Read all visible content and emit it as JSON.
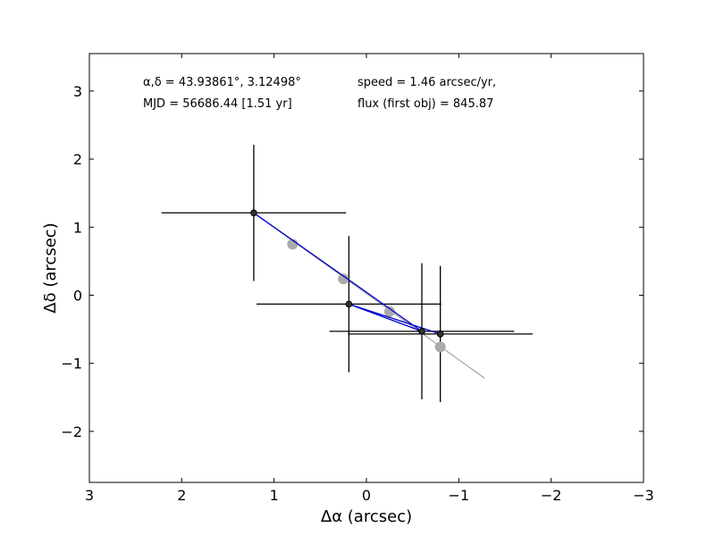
{
  "chart_data": {
    "type": "scatter",
    "xlabel": "Δα (arcsec)",
    "ylabel": "Δδ (arcsec)",
    "xlim": [
      3,
      -3
    ],
    "ylim": [
      -2.75,
      3.55
    ],
    "x_ticks": [
      3,
      2,
      1,
      0,
      -1,
      -2,
      -3
    ],
    "x_tick_labels": [
      "3",
      "2",
      "1",
      "0",
      "−1",
      "−2",
      "−3"
    ],
    "y_ticks": [
      3,
      2,
      1,
      0,
      -1,
      -2
    ],
    "y_tick_labels": [
      "3",
      "2",
      "1",
      "0",
      "−1",
      "−2"
    ],
    "grid": false,
    "annotations": {
      "coords": "α,δ = 43.93861°, 3.12498°",
      "mjd": "MJD = 56686.44 [1.51 yr]",
      "speed": "speed = 1.46 arcsec/yr,",
      "flux": "flux (first obj) = 845.87"
    },
    "observed": {
      "color": "#000000",
      "path_color": "#0000cc",
      "points": [
        {
          "x": 1.22,
          "y": 1.21,
          "xerr": 1.0,
          "yerr": 1.0
        },
        {
          "x": 0.19,
          "y": -0.13,
          "xerr": 1.0,
          "yerr": 1.0
        },
        {
          "x": -0.6,
          "y": -0.53,
          "xerr": 1.0,
          "yerr": 1.0
        },
        {
          "x": -0.8,
          "y": -0.57,
          "xerr": 1.0,
          "yerr": 1.0
        }
      ],
      "path_order": [
        0,
        2,
        1,
        3
      ]
    },
    "model": {
      "color": "#aaaaaa",
      "points": [
        {
          "x": 0.8,
          "y": 0.75
        },
        {
          "x": 0.25,
          "y": 0.24
        },
        {
          "x": -0.25,
          "y": -0.24
        },
        {
          "x": -0.8,
          "y": -0.76
        }
      ],
      "line": [
        [
          1.22,
          1.21
        ],
        [
          -1.28,
          -1.22
        ]
      ]
    }
  }
}
